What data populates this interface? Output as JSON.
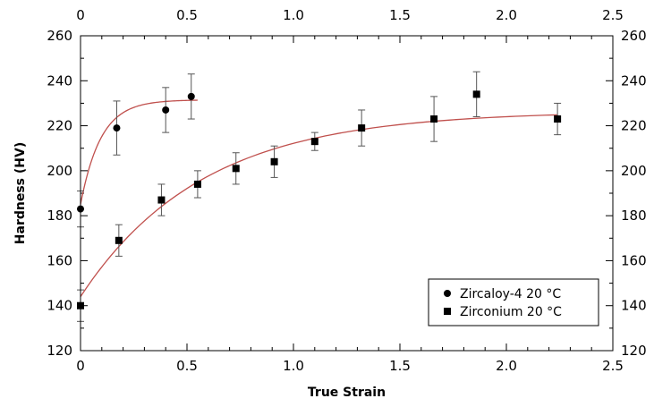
{
  "chart_data": {
    "type": "scatter",
    "title": "",
    "xlabel": "True Strain",
    "ylabel": "Hardness (HV)",
    "xlim": [
      0,
      2.5
    ],
    "ylim": [
      120,
      260
    ],
    "x_ticks": [
      "0",
      "0.5",
      "1.0",
      "1.5",
      "2.0",
      "2.5"
    ],
    "y_ticks": [
      "120",
      "140",
      "160",
      "180",
      "200",
      "220",
      "240",
      "260"
    ],
    "mirror_axes": true,
    "grid": false,
    "legend_position": "bottom-right",
    "fit_color": "#c0504d",
    "series": [
      {
        "name": "Zircaloy-4  20 °C",
        "marker": "circle",
        "x": [
          0.0,
          0.17,
          0.4,
          0.52
        ],
        "y": [
          183,
          219,
          227,
          233
        ],
        "err": [
          8,
          12,
          10,
          10
        ],
        "fit": {
          "x_max": 0.55,
          "a": 231.5,
          "b": 46.5,
          "k": 10.5
        }
      },
      {
        "name": "Zirconium  20 °C",
        "marker": "square",
        "x": [
          0.0,
          0.18,
          0.38,
          0.55,
          0.73,
          0.91,
          1.1,
          1.32,
          1.66,
          1.86,
          2.24
        ],
        "y": [
          140,
          169,
          187,
          194,
          201,
          204,
          213,
          219,
          223,
          234,
          223
        ],
        "err": [
          7,
          7,
          7,
          6,
          7,
          7,
          4,
          8,
          10,
          10,
          7
        ],
        "fit": {
          "x_max": 2.24,
          "a": 226.5,
          "b": 82.5,
          "k": 1.75
        }
      }
    ]
  }
}
